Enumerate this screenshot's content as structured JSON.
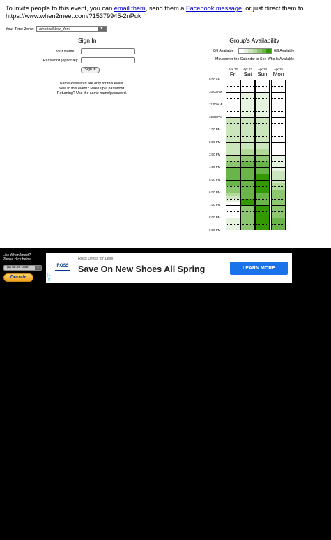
{
  "invite": {
    "prefix": "To invite people to this event, you can ",
    "email_link": "email them",
    "middle": ", send them a ",
    "facebook_link": "Facebook message",
    "suffix": ", or just direct them to",
    "url": "https://www.when2meet.com/?15379945-2nPuk"
  },
  "timezone": {
    "label": "Your Time Zone:",
    "value": "America/New_York"
  },
  "signin": {
    "title": "Sign In",
    "name_label": "Your Name:",
    "password_label": "Password (optional):",
    "button": "Sign In",
    "note_line1": "Name/Password are only for this event.",
    "note_line2": "New to this event? Make up a password.",
    "note_line3": "Returning? Use the same name/password."
  },
  "availability": {
    "title": "Group's Availability",
    "legend_left": "0/6 Available",
    "legend_right": "6/6 Available",
    "mouseover": "Mouseover the Calendar to See Who Is Available",
    "legend_colors": [
      "#ffffff",
      "#e6f3e0",
      "#cbe6bc",
      "#b0d99a",
      "#8cc671",
      "#6ab54a",
      "#339900"
    ],
    "days": [
      {
        "date": "Apr 22",
        "day": "Fri"
      },
      {
        "date": "Apr 23",
        "day": "Sat"
      },
      {
        "date": "Apr 24",
        "day": "Sun"
      },
      {
        "date": "Apr 25",
        "day": "Mon"
      }
    ],
    "times": [
      "9:00 AM",
      "10:00 AM",
      "11:00 AM",
      "12:00 PM",
      "1:00 PM",
      "2:00 PM",
      "3:00 PM",
      "4:00 PM",
      "5:00 PM",
      "6:00 PM",
      "7:00 PM",
      "8:00 PM",
      "9:00 PM"
    ],
    "grid_levels": [
      [
        0,
        0,
        0,
        0
      ],
      [
        0,
        0,
        0,
        0
      ],
      [
        0,
        0,
        0,
        0
      ],
      [
        0,
        0,
        0,
        0
      ],
      [
        0,
        1,
        1,
        0
      ],
      [
        0,
        1,
        1,
        0
      ],
      [
        0,
        1,
        1,
        0
      ],
      [
        0,
        1,
        1,
        0
      ],
      [
        0,
        1,
        1,
        0
      ],
      [
        0,
        1,
        1,
        0
      ],
      [
        0,
        1,
        1,
        0
      ],
      [
        0,
        1,
        1,
        0
      ],
      [
        2,
        2,
        2,
        0
      ],
      [
        2,
        2,
        2,
        0
      ],
      [
        2,
        2,
        2,
        0
      ],
      [
        2,
        2,
        2,
        0
      ],
      [
        2,
        2,
        2,
        0
      ],
      [
        2,
        2,
        2,
        0
      ],
      [
        2,
        2,
        2,
        0
      ],
      [
        2,
        2,
        2,
        0
      ],
      [
        2,
        2,
        2,
        0
      ],
      [
        2,
        2,
        2,
        0
      ],
      [
        2,
        3,
        3,
        0
      ],
      [
        2,
        3,
        3,
        0
      ],
      [
        3,
        4,
        4,
        1
      ],
      [
        3,
        4,
        4,
        1
      ],
      [
        4,
        5,
        5,
        1
      ],
      [
        4,
        5,
        5,
        1
      ],
      [
        5,
        5,
        5,
        1
      ],
      [
        5,
        5,
        5,
        2
      ],
      [
        5,
        5,
        6,
        2
      ],
      [
        5,
        5,
        6,
        2
      ],
      [
        5,
        5,
        6,
        2
      ],
      [
        5,
        5,
        6,
        3
      ],
      [
        4,
        5,
        6,
        3
      ],
      [
        4,
        5,
        6,
        4
      ],
      [
        3,
        5,
        5,
        4
      ],
      [
        2,
        5,
        5,
        4
      ],
      [
        1,
        6,
        5,
        4
      ],
      [
        0,
        6,
        5,
        4
      ],
      [
        0,
        4,
        6,
        4
      ],
      [
        0,
        4,
        6,
        4
      ],
      [
        0,
        4,
        6,
        4
      ],
      [
        0,
        4,
        6,
        4
      ],
      [
        1,
        4,
        6,
        5
      ],
      [
        1,
        4,
        6,
        5
      ],
      [
        1,
        4,
        6,
        5
      ],
      [
        1,
        4,
        6,
        5
      ]
    ]
  },
  "donate": {
    "line1": "Like When2meet?",
    "line2": "Please click below.",
    "amount": "(1) $5.00 USD",
    "button": "Donate"
  },
  "ad": {
    "logo": "ROSS",
    "subtitle": "Ross Dress for Less",
    "headline": "Save On New Shoes All Spring",
    "cta": "LEARN MORE"
  }
}
